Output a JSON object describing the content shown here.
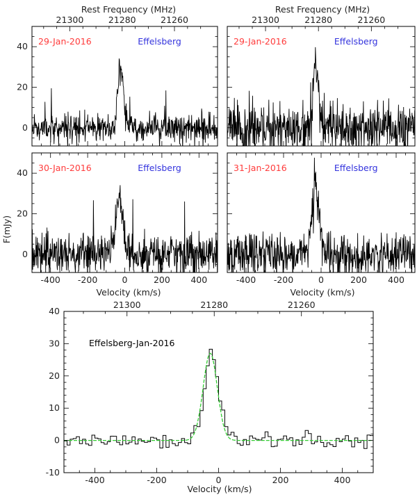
{
  "colors": {
    "date": "#ff3b3b",
    "site": "#3333dd",
    "spectrum": "#000000",
    "fit": "#33cc33"
  },
  "shared": {
    "top_axis_title": "Rest Frequency (MHz)",
    "x_axis_title": "Velocity (km/s)",
    "y_axis_title": "F(mJy)"
  },
  "chart_data": [
    {
      "id": "p1",
      "type": "line",
      "date_label": "29-Jan-2016",
      "site_label": "Effelsberg",
      "xlim": [
        -500,
        500
      ],
      "ylim": [
        -9,
        50
      ],
      "x_ticks": [
        -400,
        -200,
        0,
        200,
        400
      ],
      "y_ticks": [
        0,
        20,
        40
      ],
      "top_ticks": [
        21300,
        21280,
        21260
      ],
      "show_top_axis": true,
      "show_x_tick_labels": false,
      "show_y_tick_labels": true,
      "series": [
        {
          "seed": 11,
          "noise": 3.6,
          "peak": 30,
          "center": -22,
          "width": 16
        }
      ]
    },
    {
      "id": "p2",
      "type": "line",
      "date_label": "29-Jan-2016",
      "site_label": "Effelsberg",
      "xlim": [
        -500,
        500
      ],
      "ylim": [
        -9,
        50
      ],
      "x_ticks": [
        -400,
        -200,
        0,
        200,
        400
      ],
      "y_ticks": [
        0,
        20,
        40
      ],
      "top_ticks": [
        21300,
        21280,
        21260
      ],
      "show_top_axis": true,
      "show_x_tick_labels": false,
      "show_y_tick_labels": false,
      "series": [
        {
          "seed": 23,
          "noise": 6.0,
          "peak": 33,
          "center": -28,
          "width": 13
        }
      ]
    },
    {
      "id": "p3",
      "type": "line",
      "date_label": "30-Jan-2016",
      "site_label": "Effelsberg",
      "xlim": [
        -500,
        500
      ],
      "ylim": [
        -9,
        50
      ],
      "x_ticks": [
        -400,
        -200,
        0,
        200,
        400
      ],
      "y_ticks": [
        0,
        20,
        40
      ],
      "top_ticks": [],
      "show_top_axis": false,
      "show_x_tick_labels": true,
      "show_y_tick_labels": true,
      "series": [
        {
          "seed": 37,
          "noise": 5.0,
          "peak": 26,
          "center": -30,
          "width": 22
        }
      ]
    },
    {
      "id": "p4",
      "type": "line",
      "date_label": "31-Jan-2016",
      "site_label": "Effelsberg",
      "xlim": [
        -500,
        500
      ],
      "ylim": [
        -9,
        50
      ],
      "x_ticks": [
        -400,
        -200,
        0,
        200,
        400
      ],
      "y_ticks": [
        0,
        20,
        40
      ],
      "top_ticks": [],
      "show_top_axis": false,
      "show_x_tick_labels": true,
      "show_y_tick_labels": false,
      "series": [
        {
          "seed": 51,
          "noise": 5.2,
          "peak": 32,
          "center": -30,
          "width": 20
        }
      ]
    },
    {
      "id": "p5",
      "type": "line",
      "date_label": "Effelsberg-Jan-2016",
      "site_label": "",
      "xlim": [
        -500,
        500
      ],
      "ylim": [
        -10,
        40
      ],
      "x_ticks": [
        -400,
        -200,
        0,
        200,
        400
      ],
      "y_ticks": [
        -10,
        0,
        10,
        20,
        30,
        40
      ],
      "top_ticks": [
        21300,
        21280,
        21260
      ],
      "show_top_axis": true,
      "show_x_tick_labels": true,
      "show_y_tick_labels": true,
      "series": [
        {
          "name": "",
          "seed": 77,
          "noise": 1.3,
          "peak": 27,
          "center": -27,
          "width": 23,
          "style": "step"
        },
        {
          "name": "",
          "kind": "fit",
          "peak": 27,
          "center": -27,
          "width": 23
        }
      ]
    }
  ]
}
